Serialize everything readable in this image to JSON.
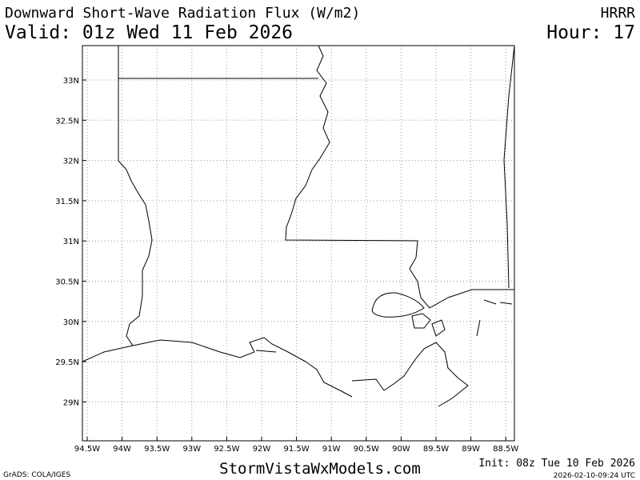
{
  "header": {
    "title": "Downward Short-Wave Radiation Flux (W/m2)",
    "model": "HRRR",
    "valid": "Valid: 01z Wed 11 Feb 2026",
    "hour": "Hour: 17"
  },
  "map": {
    "x_ticks": [
      "94.5W",
      "94W",
      "93.5W",
      "93W",
      "92.5W",
      "92W",
      "91.5W",
      "91W",
      "90.5W",
      "90W",
      "89.5W",
      "89W",
      "88.5W"
    ],
    "y_ticks": [
      "33N",
      "32.5N",
      "32N",
      "31.5N",
      "31N",
      "30.5N",
      "30N",
      "29.5N",
      "29N"
    ]
  },
  "footer": {
    "credit": "GrADS: COLA/IGES",
    "site": "StormVistaWxModels.com",
    "init": "Init: 08z Tue 10 Feb 2026",
    "timestamp": "2026-02-10-09:24 UTC"
  }
}
